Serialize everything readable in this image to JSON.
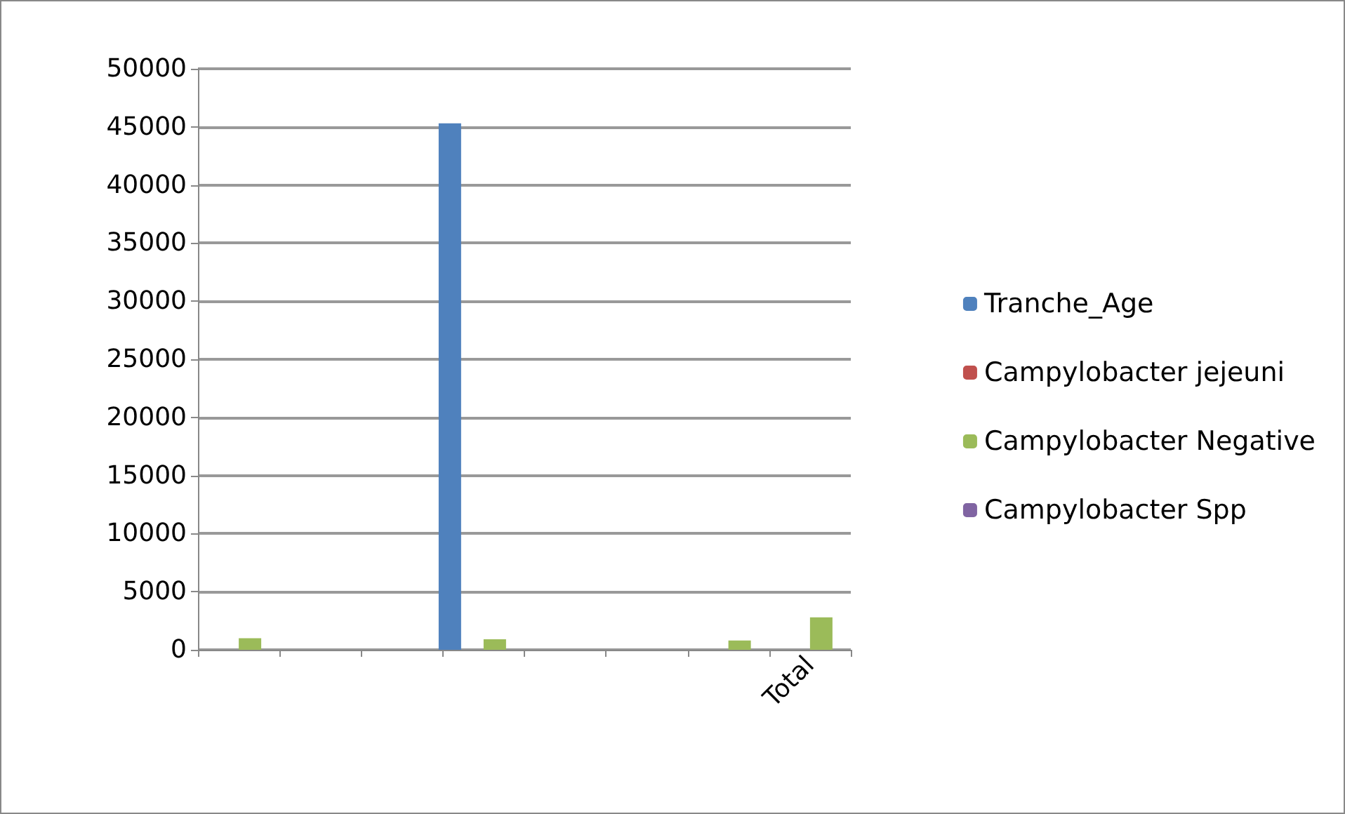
{
  "chart_data": {
    "type": "bar",
    "categories": [
      null,
      null,
      null,
      null,
      null,
      null,
      null,
      "Total"
    ],
    "series": [
      {
        "name": "Tranche_Age",
        "color": "#4f81bd",
        "values": [
          0,
          null,
          null,
          45300,
          null,
          null,
          0,
          null
        ]
      },
      {
        "name": "Campylobacter jejeuni",
        "color": "#c0504d",
        "values": [
          0,
          null,
          null,
          0,
          null,
          null,
          0,
          0
        ]
      },
      {
        "name": "Campylobacter Negative",
        "color": "#9bbb59",
        "values": [
          1000,
          null,
          null,
          900,
          null,
          null,
          800,
          2800
        ]
      },
      {
        "name": "Campylobacter Spp",
        "color": "#8064a2",
        "values": [
          0,
          null,
          null,
          0,
          null,
          null,
          0,
          0
        ]
      }
    ],
    "ylim": [
      0,
      50000
    ],
    "yticks": [
      0,
      5000,
      10000,
      15000,
      20000,
      25000,
      30000,
      35000,
      40000,
      45000,
      50000
    ],
    "grid": "y",
    "legend": "right"
  }
}
